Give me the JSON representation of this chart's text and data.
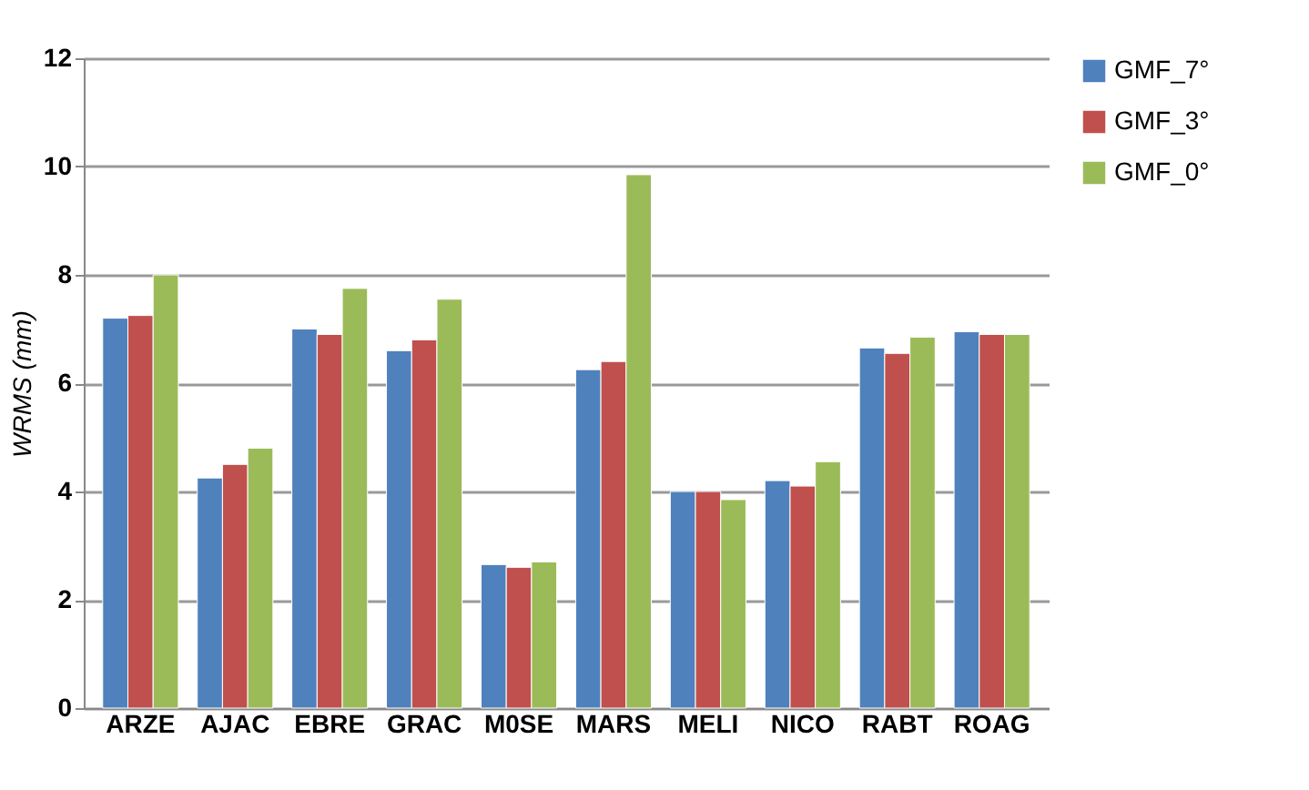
{
  "chart_data": {
    "type": "bar",
    "ylabel": "WRMS (mm)",
    "categories": [
      "ARZE",
      "AJAC",
      "EBRE",
      "GRAC",
      "M0SE",
      "MARS",
      "MELI",
      "NICO",
      "RABT",
      "ROAG"
    ],
    "series": [
      {
        "name": "GMF_7°",
        "color": "#4f81bd",
        "values": [
          7.2,
          4.25,
          7.0,
          6.6,
          2.65,
          6.25,
          4.0,
          4.2,
          6.65,
          6.95
        ]
      },
      {
        "name": "GMF_3°",
        "color": "#c0504d",
        "values": [
          7.25,
          4.5,
          6.9,
          6.8,
          2.6,
          6.4,
          4.0,
          4.1,
          6.55,
          6.9
        ]
      },
      {
        "name": "GMF_0°",
        "color": "#9bbb59",
        "values": [
          8.0,
          4.8,
          7.75,
          7.55,
          2.7,
          9.85,
          3.85,
          4.55,
          6.85,
          6.9
        ]
      }
    ],
    "ylim": [
      0,
      12
    ],
    "yticks": [
      0,
      2,
      4,
      6,
      8,
      10,
      12
    ],
    "grid": "y",
    "legend": "right"
  }
}
